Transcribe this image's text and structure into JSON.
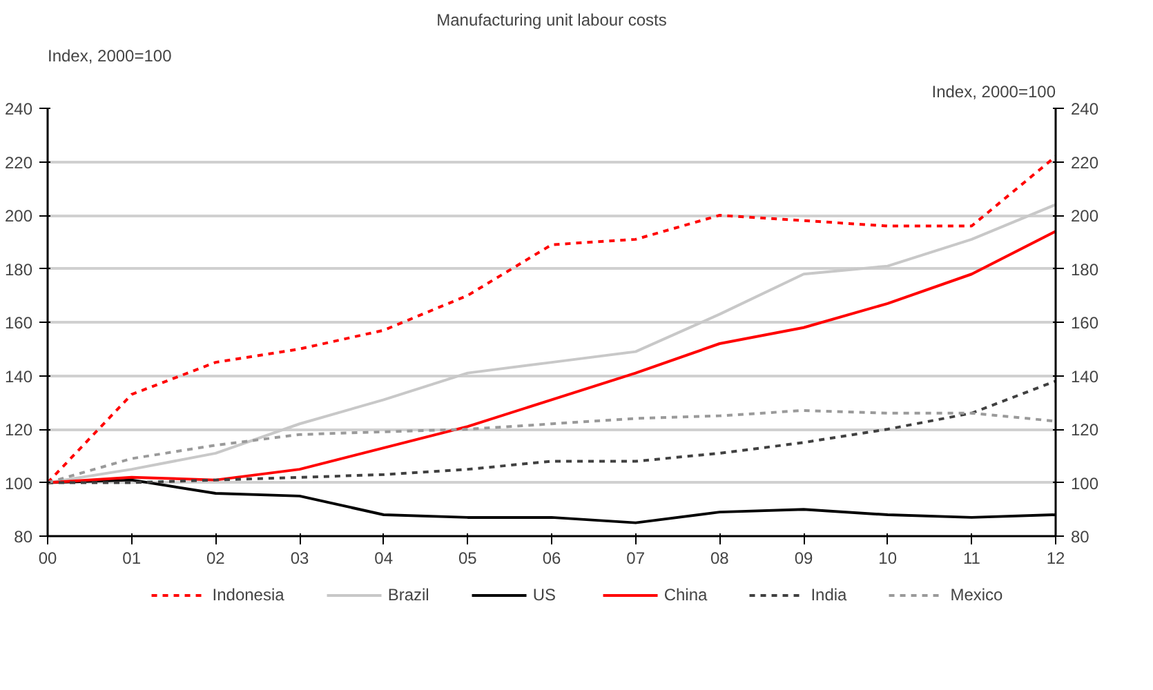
{
  "chart_data": {
    "type": "line",
    "title": "Manufacturing unit labour costs",
    "ylabel": "Index, 2000=100",
    "y2label": "Index, 2000=100",
    "x": [
      0,
      1,
      2,
      3,
      4,
      5,
      6,
      7,
      8,
      9,
      10,
      11,
      12
    ],
    "xlim": [
      0,
      12
    ],
    "xticks": [
      {
        "value": 0,
        "label": "00"
      },
      {
        "value": 1,
        "label": "01"
      },
      {
        "value": 2,
        "label": "02"
      },
      {
        "value": 3,
        "label": "03"
      },
      {
        "value": 4,
        "label": "04"
      },
      {
        "value": 5,
        "label": "05"
      },
      {
        "value": 6,
        "label": "06"
      },
      {
        "value": 7,
        "label": "07"
      },
      {
        "value": 8,
        "label": "08"
      },
      {
        "value": 9,
        "label": "09"
      },
      {
        "value": 10,
        "label": "10"
      },
      {
        "value": 11,
        "label": "11"
      },
      {
        "value": 12,
        "label": "12"
      }
    ],
    "ylim": [
      80,
      240
    ],
    "yticks": [
      80,
      100,
      120,
      140,
      160,
      180,
      200,
      220,
      240
    ],
    "y2lim": [
      80,
      240
    ],
    "y2ticks": [
      80,
      100,
      120,
      140,
      160,
      180,
      200,
      220,
      240
    ],
    "grid": "y",
    "legend": "bottom",
    "marker": "none",
    "series": [
      {
        "name": "Indonesia",
        "color": "#ff0000",
        "line_style": "dashed",
        "values": [
          100,
          133,
          145,
          150,
          157,
          170,
          189,
          191,
          200,
          198,
          196,
          196,
          222
        ]
      },
      {
        "name": "Brazil",
        "color": "#c8c8c8",
        "line_style": "solid",
        "values": [
          100,
          105,
          111,
          122,
          131,
          141,
          145,
          149,
          163,
          178,
          181,
          191,
          204
        ]
      },
      {
        "name": "US",
        "color": "#000000",
        "line_style": "solid",
        "values": [
          100,
          101,
          96,
          95,
          88,
          87,
          87,
          85,
          89,
          90,
          88,
          87,
          88
        ]
      },
      {
        "name": "China",
        "color": "#ff0000",
        "line_style": "solid",
        "values": [
          100,
          102,
          101,
          105,
          113,
          121,
          131,
          141,
          152,
          158,
          167,
          178,
          194
        ]
      },
      {
        "name": "India",
        "color": "#404040",
        "line_style": "dashed",
        "values": [
          100,
          100,
          101,
          102,
          103,
          105,
          108,
          108,
          111,
          115,
          120,
          126,
          138
        ]
      },
      {
        "name": "Mexico",
        "color": "#9a9a9a",
        "line_style": "dashed",
        "values": [
          100,
          109,
          114,
          118,
          119,
          120,
          122,
          124,
          125,
          127,
          126,
          126,
          123
        ]
      }
    ]
  }
}
